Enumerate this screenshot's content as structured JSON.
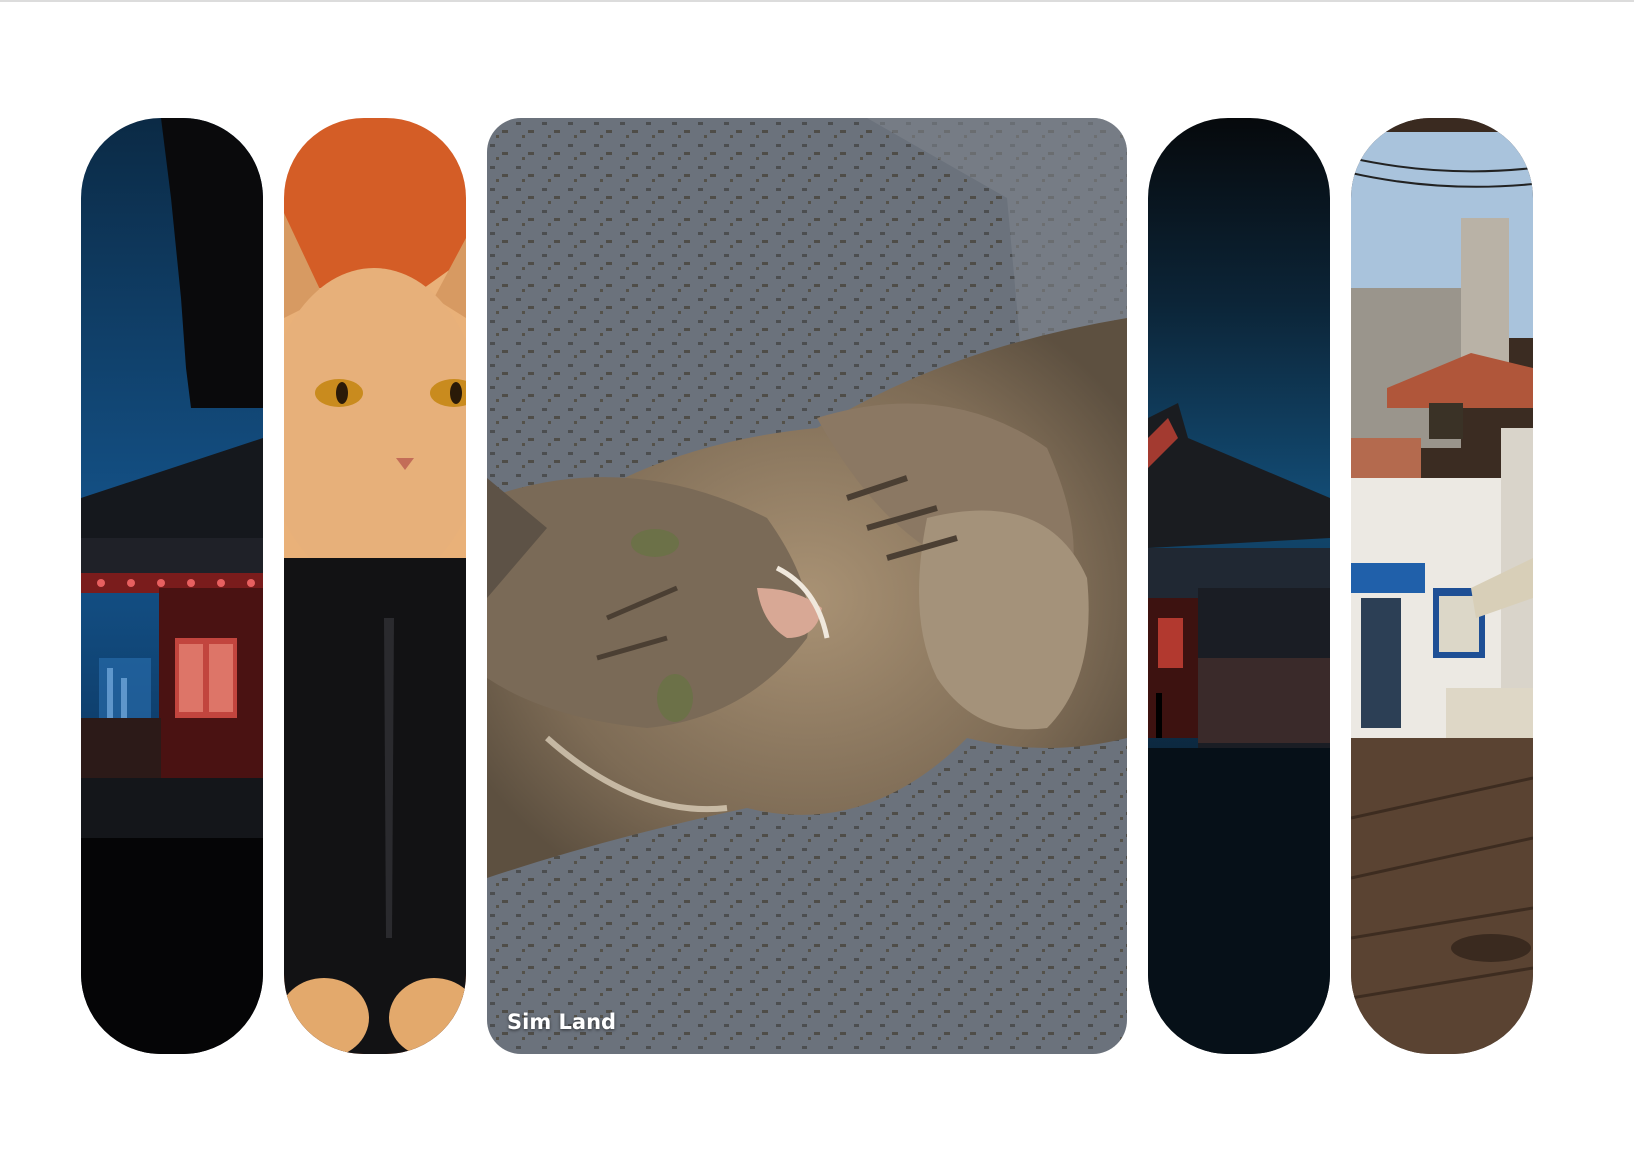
{
  "gallery": {
    "cards": [
      {
        "id": "palace-night",
        "image": "korean-palace-roof-night"
      },
      {
        "id": "orange-cat",
        "image": "orange-cat-in-black-jacket"
      },
      {
        "id": "tabby-cat",
        "image": "tabby-cat-lying-on-grey-couch",
        "label": "Sim Land",
        "expanded": true
      },
      {
        "id": "palace-dusk",
        "image": "korean-palace-courtyard-dusk"
      },
      {
        "id": "old-street",
        "image": "cobblestone-street-white-houses"
      }
    ]
  }
}
